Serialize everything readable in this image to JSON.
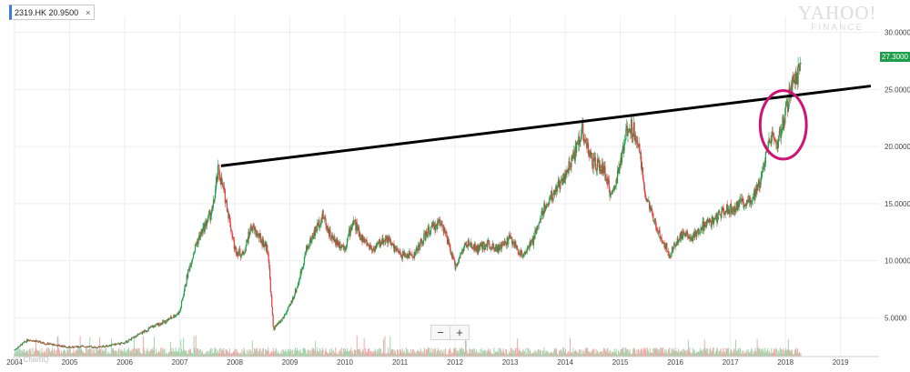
{
  "ticker": {
    "label": "2319.HK",
    "value": "20.9500",
    "close_icon": "×"
  },
  "brand": {
    "line1": "YAHOO!",
    "line2": "FINANCE"
  },
  "zoom": {
    "minus": "−",
    "plus": "+"
  },
  "credit": "(c) ChartIQ",
  "last_price_label": "27.3000",
  "colors": {
    "up": "#1e9e4a",
    "down": "#e0413f",
    "trendline": "#000000",
    "circle": "#cc1477",
    "volume_up": "#9fd6ae",
    "volume_down": "#f1a9a8",
    "grid": "#eeeeee"
  },
  "chart_data": {
    "type": "line",
    "title": "",
    "xlabel": "",
    "ylabel": "",
    "x_ticks": [
      "2004",
      "2005",
      "2006",
      "2007",
      "2008",
      "2009",
      "2010",
      "2011",
      "2012",
      "2013",
      "2014",
      "2015",
      "2016",
      "2017",
      "2018",
      "2019"
    ],
    "y_ticks": [
      "5.0000",
      "10.0000",
      "15.0000",
      "20.0000",
      "25.0000",
      "30.0000"
    ],
    "xlim": [
      2004.0,
      2019.7
    ],
    "ylim": [
      1.6,
      31.4
    ],
    "grid": true,
    "series": [
      {
        "kind": "candlestick",
        "x": [
          2004.0,
          2004.25,
          2004.5,
          2004.75,
          2005.0,
          2005.25,
          2005.5,
          2005.75,
          2006.0,
          2006.25,
          2006.5,
          2006.75,
          2007.0,
          2007.15,
          2007.3,
          2007.45,
          2007.6,
          2007.7,
          2007.85,
          2008.0,
          2008.15,
          2008.3,
          2008.45,
          2008.6,
          2008.7,
          2008.85,
          2009.0,
          2009.15,
          2009.3,
          2009.45,
          2009.6,
          2009.75,
          2009.9,
          2010.0,
          2010.15,
          2010.3,
          2010.5,
          2010.75,
          2011.0,
          2011.25,
          2011.5,
          2011.75,
          2012.0,
          2012.2,
          2012.4,
          2012.6,
          2012.8,
          2013.0,
          2013.2,
          2013.4,
          2013.6,
          2013.8,
          2014.0,
          2014.15,
          2014.3,
          2014.5,
          2014.7,
          2014.85,
          2015.0,
          2015.15,
          2015.3,
          2015.45,
          2015.6,
          2015.75,
          2015.9,
          2016.0,
          2016.15,
          2016.3,
          2016.5,
          2016.7,
          2016.9,
          2017.0,
          2017.2,
          2017.4,
          2017.55,
          2017.7,
          2017.85,
          2018.0,
          2018.1,
          2018.2,
          2018.28
        ],
        "close": [
          2.2,
          3.1,
          2.8,
          2.6,
          2.4,
          2.5,
          2.4,
          2.6,
          2.8,
          3.5,
          4.2,
          4.7,
          5.5,
          9.0,
          11.5,
          13.0,
          14.5,
          18.0,
          15.0,
          11.0,
          10.5,
          13.0,
          12.0,
          11.0,
          4.0,
          4.8,
          6.0,
          8.0,
          11.0,
          12.5,
          14.0,
          12.0,
          11.5,
          11.2,
          13.5,
          12.0,
          11.0,
          12.0,
          10.5,
          10.5,
          12.5,
          13.5,
          9.5,
          11.5,
          11.0,
          11.5,
          11.0,
          12.0,
          10.5,
          11.5,
          14.5,
          16.0,
          17.5,
          19.0,
          21.5,
          18.5,
          18.0,
          15.5,
          18.5,
          22.0,
          21.0,
          16.0,
          13.5,
          12.0,
          10.5,
          11.5,
          12.5,
          12.0,
          13.0,
          13.5,
          14.5,
          14.5,
          15.0,
          15.5,
          17.0,
          21.0,
          20.0,
          23.0,
          25.0,
          26.0,
          27.3
        ]
      },
      {
        "kind": "trendline",
        "name": "",
        "x": [
          2007.75,
          2019.55
        ],
        "values": [
          18.3,
          25.3
        ]
      }
    ],
    "annotations": [
      {
        "type": "ellipse",
        "x_center": 2017.96,
        "y_center": 21.9,
        "x_radius": 0.42,
        "y_radius": 3.0
      }
    ]
  }
}
